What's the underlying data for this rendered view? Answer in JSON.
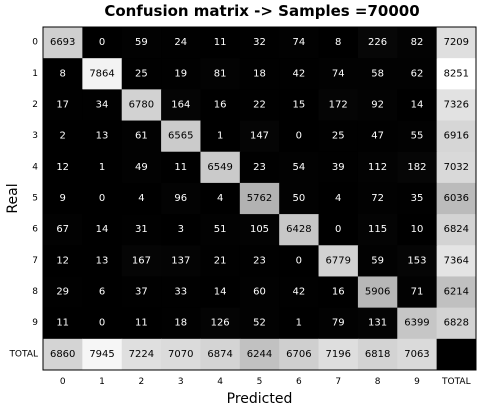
{
  "chart_data": {
    "type": "heatmap",
    "title": "Confusion matrix -> Samples =70000",
    "xlabel": "Predicted",
    "ylabel": "Real",
    "row_labels": [
      "0",
      "1",
      "2",
      "3",
      "4",
      "5",
      "6",
      "7",
      "8",
      "9",
      "TOTAL"
    ],
    "col_labels": [
      "0",
      "1",
      "2",
      "3",
      "4",
      "5",
      "6",
      "7",
      "8",
      "9",
      "TOTAL"
    ],
    "values": [
      [
        6693,
        0,
        59,
        24,
        11,
        32,
        74,
        8,
        226,
        82,
        7209
      ],
      [
        8,
        7864,
        25,
        19,
        81,
        18,
        42,
        74,
        58,
        62,
        8251
      ],
      [
        17,
        34,
        6780,
        164,
        16,
        22,
        15,
        172,
        92,
        14,
        7326
      ],
      [
        2,
        13,
        61,
        6565,
        1,
        147,
        0,
        25,
        47,
        55,
        6916
      ],
      [
        12,
        1,
        49,
        11,
        6549,
        23,
        54,
        39,
        112,
        182,
        7032
      ],
      [
        9,
        0,
        4,
        96,
        4,
        5762,
        50,
        4,
        72,
        35,
        6036
      ],
      [
        67,
        14,
        31,
        3,
        51,
        105,
        6428,
        0,
        115,
        10,
        6824
      ],
      [
        12,
        13,
        167,
        137,
        21,
        23,
        0,
        6779,
        59,
        153,
        7364
      ],
      [
        29,
        6,
        37,
        33,
        14,
        60,
        42,
        16,
        5906,
        71,
        6214
      ],
      [
        11,
        0,
        11,
        18,
        126,
        52,
        1,
        79,
        131,
        6399,
        6828
      ],
      [
        6860,
        7945,
        7224,
        7070,
        6874,
        6244,
        6706,
        7196,
        6818,
        7063,
        null
      ]
    ],
    "colormap": "grayscale",
    "grid": false
  }
}
